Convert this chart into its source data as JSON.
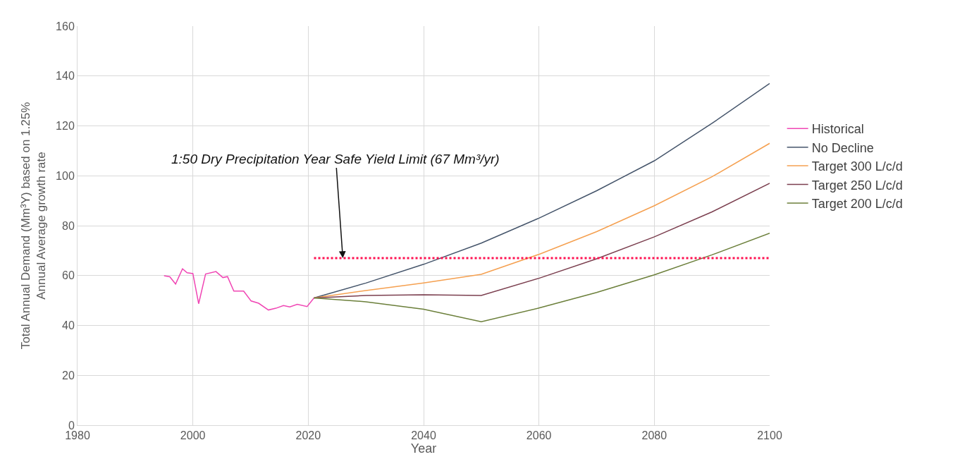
{
  "chart_data": {
    "type": "line",
    "xlabel": "Year",
    "ylabel": "Total Annual Demand (Mm³Y) based on 1.25%\nAnnual Average growth rate",
    "xlim": [
      1980,
      2100
    ],
    "xticks": [
      1980,
      2000,
      2020,
      2040,
      2060,
      2080,
      2100
    ],
    "ylim": [
      0,
      160
    ],
    "yticks": [
      0,
      20,
      40,
      60,
      80,
      100,
      120,
      140,
      160
    ],
    "grid": true,
    "legend": "right",
    "marker": "none",
    "line_style": "solid",
    "series": [
      {
        "name": "Historical",
        "color": "#f046b4",
        "x": [
          1995,
          1996,
          1997,
          1998.2,
          1999,
          2000,
          2001,
          2002.2,
          2004,
          2005.2,
          2006,
          2007.1,
          2008.8,
          2010.1,
          2011.4,
          2013.1,
          2014.4,
          2015.7,
          2016.8,
          2018.1,
          2019.8,
          2021
        ],
        "values": [
          59.9,
          59.5,
          56.6,
          62.7,
          61.1,
          60.8,
          48.7,
          60.6,
          61.6,
          59.2,
          59.6,
          53.8,
          53.8,
          49.8,
          48.9,
          46.2,
          46.9,
          48,
          47.4,
          48.5,
          47.6,
          51
        ]
      },
      {
        "name": "No Decline",
        "color": "#44546a",
        "x": [
          2021,
          2030,
          2040,
          2050,
          2060,
          2070,
          2080,
          2090,
          2100
        ],
        "values": [
          51,
          57,
          64.5,
          73,
          83,
          94,
          106,
          121,
          137
        ]
      },
      {
        "name": "Target 300 L/c/d",
        "color": "#f5a050",
        "x": [
          2021,
          2030,
          2040,
          2050,
          2060,
          2070,
          2080,
          2090,
          2100
        ],
        "values": [
          51,
          54,
          57,
          60.5,
          68.5,
          77.6,
          88,
          99.6,
          113
        ]
      },
      {
        "name": "Target 250 L/c/d",
        "color": "#7b3f4f",
        "x": [
          2021,
          2030,
          2040,
          2050,
          2060,
          2070,
          2080,
          2090,
          2100
        ],
        "values": [
          51,
          52,
          52.3,
          52,
          58.9,
          66.7,
          75.5,
          85.5,
          97
        ]
      },
      {
        "name": "Target 200 L/c/d",
        "color": "#6b7f3a",
        "x": [
          2021,
          2030,
          2040,
          2050,
          2060,
          2070,
          2080,
          2090,
          2100
        ],
        "values": [
          51,
          49.5,
          46.5,
          41.5,
          47,
          53.2,
          60.3,
          68.3,
          77
        ]
      },
      {
        "color": "#ff1050",
        "line_style": "dotted",
        "x": [
          2021,
          2100
        ],
        "values": [
          67,
          67
        ]
      }
    ],
    "annotations": [
      {
        "text": "1:50 Dry Precipitation Year Safe Yield Limit (67 Mm³/yr)",
        "x": 2026,
        "y": 67
      }
    ]
  }
}
